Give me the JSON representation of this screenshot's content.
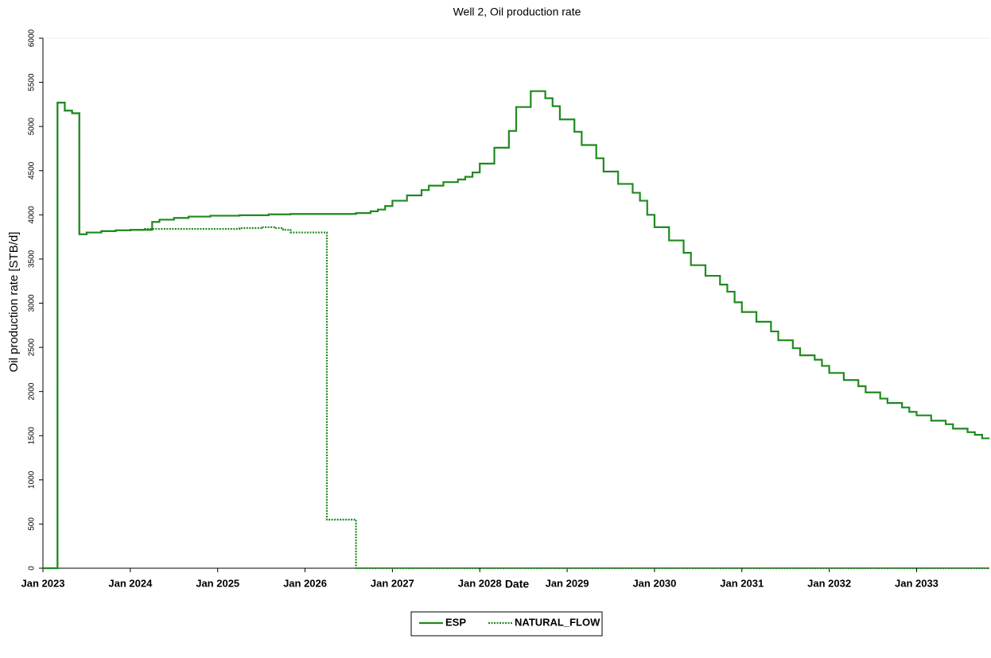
{
  "chart_data": {
    "type": "step-line",
    "title": "Well 2, Oil production rate",
    "x_label": "Date",
    "y_label": "Oil production rate [STB/d]",
    "xlim": [
      "2023-01",
      "2033-11"
    ],
    "xticks": [
      {
        "value": "2023-01",
        "label": "Jan 2023"
      },
      {
        "value": "2024-01",
        "label": "Jan 2024"
      },
      {
        "value": "2025-01",
        "label": "Jan 2025"
      },
      {
        "value": "2026-01",
        "label": "Jan 2026"
      },
      {
        "value": "2027-01",
        "label": "Jan 2027"
      },
      {
        "value": "2028-01",
        "label": "Jan 2028"
      },
      {
        "value": "2029-01",
        "label": "Jan 2029"
      },
      {
        "value": "2030-01",
        "label": "Jan 2030"
      },
      {
        "value": "2031-01",
        "label": "Jan 2031"
      },
      {
        "value": "2032-01",
        "label": "Jan 2032"
      },
      {
        "value": "2033-01",
        "label": "Jan 2033"
      }
    ],
    "ylim": [
      0,
      6000
    ],
    "yticks": [
      0,
      500,
      1000,
      1500,
      2000,
      2500,
      3000,
      3500,
      4000,
      4500,
      5000,
      5500,
      6000
    ],
    "legend": "bottom",
    "series": [
      {
        "name": "ESP",
        "color": "#1f8a1f",
        "line_style": "solid",
        "x": [
          "2023-01",
          "2023-03",
          "2023-04",
          "2023-05",
          "2023-06",
          "2023-07",
          "2023-09",
          "2023-11",
          "2024-01",
          "2024-04",
          "2024-05",
          "2024-07",
          "2024-09",
          "2024-12",
          "2025-04",
          "2025-08",
          "2025-11",
          "2026-08",
          "2026-10",
          "2026-11",
          "2026-12",
          "2027-01",
          "2027-03",
          "2027-05",
          "2027-06",
          "2027-08",
          "2027-10",
          "2027-11",
          "2027-12",
          "2028-01",
          "2028-03",
          "2028-05",
          "2028-06",
          "2028-08",
          "2028-10",
          "2028-11",
          "2028-12",
          "2029-02",
          "2029-03",
          "2029-05",
          "2029-06",
          "2029-08",
          "2029-10",
          "2029-11",
          "2029-12",
          "2030-01",
          "2030-03",
          "2030-05",
          "2030-06",
          "2030-08",
          "2030-10",
          "2030-11",
          "2030-12",
          "2031-01",
          "2031-03",
          "2031-05",
          "2031-06",
          "2031-08",
          "2031-09",
          "2031-11",
          "2031-12",
          "2032-01",
          "2032-03",
          "2032-05",
          "2032-06",
          "2032-08",
          "2032-09",
          "2032-11",
          "2032-12",
          "2033-01",
          "2033-03",
          "2033-05",
          "2033-06",
          "2033-08",
          "2033-09",
          "2033-10"
        ],
        "values": [
          0,
          5270,
          5180,
          5150,
          3780,
          3800,
          3815,
          3825,
          3830,
          3920,
          3945,
          3965,
          3980,
          3990,
          3995,
          4005,
          4010,
          4020,
          4040,
          4060,
          4100,
          4160,
          4220,
          4280,
          4330,
          4370,
          4400,
          4430,
          4480,
          4580,
          4760,
          4950,
          5220,
          5400,
          5320,
          5230,
          5080,
          4940,
          4790,
          4640,
          4490,
          4350,
          4250,
          4160,
          4000,
          3860,
          3710,
          3570,
          3430,
          3310,
          3210,
          3130,
          3010,
          2900,
          2790,
          2680,
          2580,
          2490,
          2410,
          2360,
          2290,
          2210,
          2130,
          2060,
          1990,
          1920,
          1870,
          1820,
          1770,
          1730,
          1670,
          1630,
          1580,
          1540,
          1510,
          1470
        ]
      },
      {
        "name": "NATURAL_FLOW",
        "color": "#1f8a1f",
        "line_style": "dotted",
        "x": [
          "2023-01",
          "2023-03",
          "2023-04",
          "2023-05",
          "2023-06",
          "2023-07",
          "2023-09",
          "2023-11",
          "2024-01",
          "2024-03",
          "2025-01",
          "2025-04",
          "2025-07",
          "2025-09",
          "2025-10",
          "2025-11",
          "2026-04",
          "2026-08",
          "2033-10"
        ],
        "values": [
          0,
          5270,
          5180,
          5150,
          3780,
          3800,
          3815,
          3825,
          3830,
          3840,
          3840,
          3850,
          3860,
          3850,
          3830,
          3800,
          550,
          0,
          0
        ]
      }
    ]
  }
}
